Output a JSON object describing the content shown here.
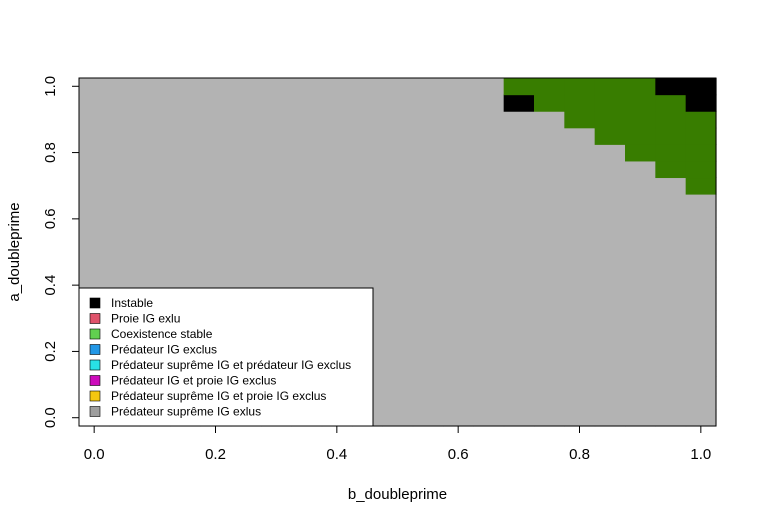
{
  "chart_data": {
    "type": "heatmap",
    "title": "",
    "xlabel": "b_doubleprime",
    "ylabel": "a_doubleprime",
    "xlim": [
      -0.025,
      1.025
    ],
    "ylim": [
      -0.025,
      1.025
    ],
    "x_ticks": [
      "0.0",
      "0.2",
      "0.4",
      "0.6",
      "0.8",
      "1.0"
    ],
    "y_ticks": [
      "0.0",
      "0.2",
      "0.4",
      "0.6",
      "0.8",
      "1.0"
    ],
    "grid": false,
    "cell_size": 0.05,
    "x_centers": [
      0.0,
      0.05,
      0.1,
      0.15,
      0.2,
      0.25,
      0.3,
      0.35,
      0.4,
      0.45,
      0.5,
      0.55,
      0.6,
      0.65,
      0.7,
      0.75,
      0.8,
      0.85,
      0.9,
      0.95,
      1.0
    ],
    "y_centers": [
      0.0,
      0.05,
      0.1,
      0.15,
      0.2,
      0.25,
      0.3,
      0.35,
      0.4,
      0.45,
      0.5,
      0.55,
      0.6,
      0.65,
      0.7,
      0.75,
      0.8,
      0.85,
      0.9,
      0.95,
      1.0
    ],
    "default_category": "Prédateur suprême IG exlus",
    "colors": {
      "Instable": "#000000",
      "Proie IG exlu": "#DF536B",
      "Coexistence stable": "#61D04F",
      "Prédateur IG exclus": "#2297E6",
      "Prédateur suprême IG et prédateur IG exclus": "#28E2E5",
      "Prédateur IG et proie IG exclus": "#CD0BBC",
      "Prédateur suprême IG et proie IG exclus": "#F5C710",
      "Prédateur suprême IG exlus": "#9E9E9E",
      "grid_background": "#B3B3B3",
      "coexistence_region": "#387D00"
    },
    "regions": [
      {
        "category": "Coexistence stable",
        "y": 1.0,
        "x_from": 0.7,
        "x_to": 0.9
      },
      {
        "category": "Instable",
        "y": 1.0,
        "x_from": 0.95,
        "x_to": 1.0
      },
      {
        "category": "Instable",
        "y": 0.95,
        "x_from": 0.7,
        "x_to": 0.7
      },
      {
        "category": "Coexistence stable",
        "y": 0.95,
        "x_from": 0.75,
        "x_to": 0.95
      },
      {
        "category": "Instable",
        "y": 0.95,
        "x_from": 1.0,
        "x_to": 1.0
      },
      {
        "category": "Coexistence stable",
        "y": 0.9,
        "x_from": 0.8,
        "x_to": 1.0
      },
      {
        "category": "Coexistence stable",
        "y": 0.85,
        "x_from": 0.85,
        "x_to": 1.0
      },
      {
        "category": "Coexistence stable",
        "y": 0.8,
        "x_from": 0.9,
        "x_to": 1.0
      },
      {
        "category": "Coexistence stable",
        "y": 0.75,
        "x_from": 0.95,
        "x_to": 1.0
      },
      {
        "category": "Coexistence stable",
        "y": 0.7,
        "x_from": 1.0,
        "x_to": 1.0
      }
    ],
    "legend": {
      "placement": "bottom-left",
      "entries": [
        "Instable",
        "Proie IG exlu",
        "Coexistence stable",
        "Prédateur IG exclus",
        "Prédateur suprême IG et prédateur IG exclus",
        "Prédateur IG et proie IG exclus",
        "Prédateur suprême IG et proie IG exclus",
        "Prédateur suprême IG exlus"
      ]
    }
  }
}
